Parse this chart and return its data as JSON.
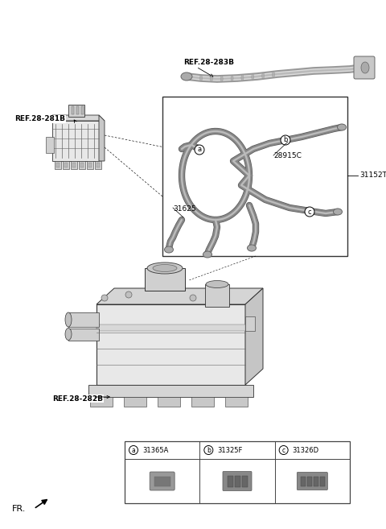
{
  "background_color": "#ffffff",
  "fig_width": 4.8,
  "fig_height": 6.57,
  "dpi": 100,
  "labels": {
    "ref_281b": "REF.28-281B",
    "ref_282b": "REF.28-282B",
    "ref_283b": "REF.28-283B",
    "part_28915c": "28915C",
    "part_31625": "31625",
    "part_31152t": "31152T",
    "fr": "FR."
  },
  "legend_items": [
    {
      "circle_label": "a",
      "part_number": "31365A"
    },
    {
      "circle_label": "b",
      "part_number": "31325F"
    },
    {
      "circle_label": "c",
      "part_number": "31326D"
    }
  ],
  "text_color": "#000000",
  "font_size_label": 6.5,
  "font_size_fr": 8
}
